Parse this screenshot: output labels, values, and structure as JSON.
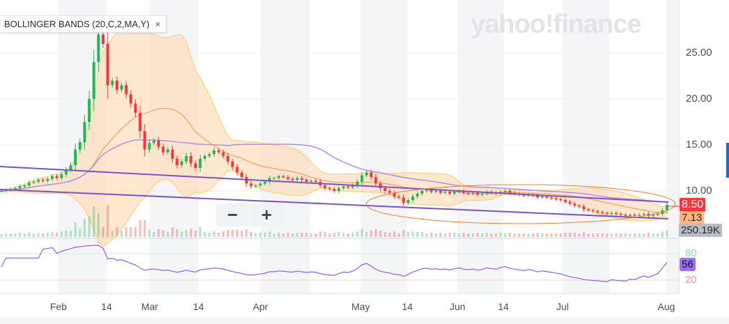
{
  "legend": {
    "label": "BOLLINGER BANDS (20,C,2,MA,Y)",
    "close": "×"
  },
  "watermark": "yahoo!finance",
  "zoom": {
    "minus": "−",
    "plus": "+"
  },
  "price_axis": [
    "25.00",
    "20.00",
    "15.00",
    "10.00"
  ],
  "tags": {
    "last": "8.50",
    "bb": "7.13",
    "volume": "250.19K",
    "rsi": "56"
  },
  "rsi_axis": [
    "80",
    "20"
  ],
  "date_axis": [
    "Feb",
    "14",
    "Mar",
    "14",
    "Apr",
    "May",
    "14",
    "Jun",
    "14",
    "Jul",
    "Aug"
  ],
  "colors": {
    "up": "#1db954",
    "down": "#ff333a",
    "band": "#ffd9b0",
    "ma": "#f5a55f",
    "long_ma": "#b18cf0",
    "trend": "#7a4fd0",
    "ellipse": "#ff7a1a",
    "rsi": "#8b5cf6"
  },
  "chart_data": {
    "type": "candlestick",
    "indicator": "Bollinger Bands (20,C,2,MA,Y)",
    "ylim": [
      5.5,
      30
    ],
    "closes": [
      10.0,
      10.1,
      10.2,
      10.3,
      10.5,
      10.6,
      10.9,
      11.0,
      11.2,
      11.1,
      11.3,
      11.6,
      11.4,
      11.8,
      12.3,
      12.8,
      14.5,
      15.3,
      17.5,
      20,
      24,
      27,
      26,
      21.5,
      22,
      21,
      21.5,
      20.5,
      19.5,
      18.5,
      16.5,
      14.5,
      15.2,
      15.5,
      14.8,
      14.2,
      14.5,
      13.5,
      12.8,
      13.2,
      13.8,
      13,
      12.5,
      13.5,
      13.8,
      14,
      14.4,
      14.2,
      13.8,
      13.2,
      12.6,
      12,
      11.5,
      10.8,
      10.5,
      10.6,
      10.8,
      11,
      11.4,
      11.4,
      11.6,
      11.5,
      11.3,
      11.2,
      11.4,
      11.2,
      11.0,
      11.1,
      11.0,
      10.6,
      10.3,
      10.2,
      10.0,
      10.3,
      10.5,
      10.4,
      10.6,
      11.0,
      11.7,
      12.0,
      11.5,
      10.8,
      10.3,
      10.0,
      9.8,
      9.4,
      9.3,
      8.7,
      9.0,
      9.4,
      9.7,
      10.0,
      10.1,
      9.9,
      10.0,
      9.8,
      9.9,
      9.7,
      9.9,
      10.0,
      9.8,
      9.7,
      9.8,
      9.6,
      9.7,
      9.9,
      9.8,
      9.7,
      9.9,
      10.0,
      9.8,
      9.7,
      9.6,
      9.5,
      9.6,
      9.5,
      9.3,
      9.4,
      9.3,
      9.2,
      9.1,
      9.0,
      8.8,
      8.6,
      8.4,
      8.3,
      8.0,
      7.9,
      7.8,
      7.7,
      7.6,
      7.5,
      7.6,
      7.5,
      7.4,
      7.3,
      7.4,
      7.3,
      7.4,
      7.5,
      7.3,
      7.4,
      7.5,
      7.9,
      8.5
    ],
    "last": 8.5,
    "rsi_last": 56
  }
}
